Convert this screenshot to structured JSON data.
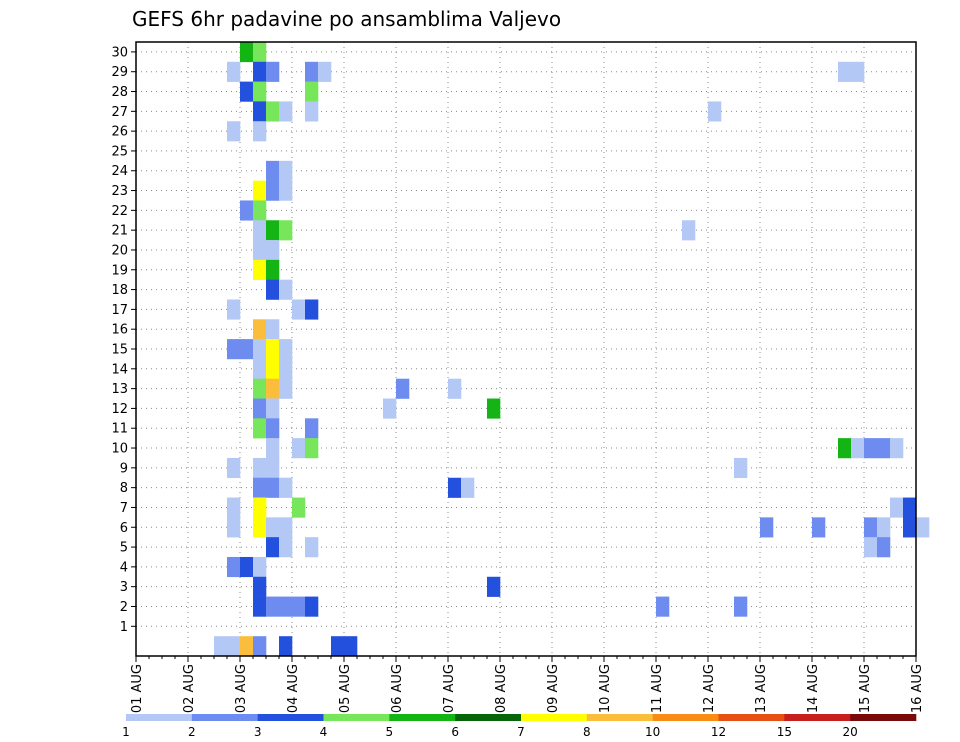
{
  "chart_data": {
    "type": "heatmap",
    "title": "GEFS 6hr padavine po ansamblima Valjevo",
    "xlabel": "",
    "ylabel": "",
    "x_ticks": [
      "01 AUG",
      "02 AUG",
      "03 AUG",
      "04 AUG",
      "05 AUG",
      "06 AUG",
      "07 AUG",
      "08 AUG",
      "09 AUG",
      "10 AUG",
      "11 AUG",
      "12 AUG",
      "13 AUG",
      "14 AUG",
      "15 AUG",
      "16 AUG"
    ],
    "x_step_hours": 6,
    "y_range": [
      0,
      30
    ],
    "y_ticks": [
      1,
      2,
      3,
      4,
      5,
      6,
      7,
      8,
      9,
      10,
      11,
      12,
      13,
      14,
      15,
      16,
      17,
      18,
      19,
      20,
      21,
      22,
      23,
      24,
      25,
      26,
      27,
      28,
      29,
      30
    ],
    "grid": true,
    "colorbar": {
      "colors": [
        "#b4c8f5",
        "#6e8cf0",
        "#2350dc",
        "#78e65a",
        "#14b414",
        "#086408",
        "#ffff00",
        "#fabe3c",
        "#f88c14",
        "#e65014",
        "#c81e1e",
        "#780a0a"
      ],
      "labels": [
        "1",
        "2",
        "3",
        "4",
        "5",
        "6",
        "7",
        "8",
        "10",
        "12",
        "15",
        "20"
      ]
    },
    "cells": [
      {
        "step": 8,
        "member": 30,
        "level": 5
      },
      {
        "step": 9,
        "member": 30,
        "level": 4
      },
      {
        "step": 7,
        "member": 29,
        "level": 1
      },
      {
        "step": 9,
        "member": 29,
        "level": 3
      },
      {
        "step": 10,
        "member": 29,
        "level": 2
      },
      {
        "step": 13,
        "member": 29,
        "level": 2
      },
      {
        "step": 14,
        "member": 29,
        "level": 1
      },
      {
        "step": 54,
        "member": 29,
        "level": 1
      },
      {
        "step": 55,
        "member": 29,
        "level": 1
      },
      {
        "step": 8,
        "member": 28,
        "level": 3
      },
      {
        "step": 9,
        "member": 28,
        "level": 4
      },
      {
        "step": 13,
        "member": 28,
        "level": 4
      },
      {
        "step": 9,
        "member": 27,
        "level": 3
      },
      {
        "step": 10,
        "member": 27,
        "level": 4
      },
      {
        "step": 11,
        "member": 27,
        "level": 1
      },
      {
        "step": 13,
        "member": 27,
        "level": 1
      },
      {
        "step": 44,
        "member": 27,
        "level": 1
      },
      {
        "step": 7,
        "member": 26,
        "level": 1
      },
      {
        "step": 9,
        "member": 26,
        "level": 1
      },
      {
        "step": 10,
        "member": 24,
        "level": 2
      },
      {
        "step": 11,
        "member": 24,
        "level": 1
      },
      {
        "step": 9,
        "member": 23,
        "level": 7
      },
      {
        "step": 10,
        "member": 23,
        "level": 2
      },
      {
        "step": 11,
        "member": 23,
        "level": 1
      },
      {
        "step": 8,
        "member": 22,
        "level": 2
      },
      {
        "step": 9,
        "member": 22,
        "level": 4
      },
      {
        "step": 9,
        "member": 21,
        "level": 1
      },
      {
        "step": 10,
        "member": 21,
        "level": 5
      },
      {
        "step": 11,
        "member": 21,
        "level": 4
      },
      {
        "step": 42,
        "member": 21,
        "level": 1
      },
      {
        "step": 9,
        "member": 20,
        "level": 1
      },
      {
        "step": 10,
        "member": 20,
        "level": 1
      },
      {
        "step": 9,
        "member": 19,
        "level": 7
      },
      {
        "step": 10,
        "member": 19,
        "level": 5
      },
      {
        "step": 10,
        "member": 18,
        "level": 3
      },
      {
        "step": 11,
        "member": 18,
        "level": 1
      },
      {
        "step": 7,
        "member": 17,
        "level": 1
      },
      {
        "step": 12,
        "member": 17,
        "level": 1
      },
      {
        "step": 13,
        "member": 17,
        "level": 3
      },
      {
        "step": 9,
        "member": 16,
        "level": 8
      },
      {
        "step": 10,
        "member": 16,
        "level": 1
      },
      {
        "step": 7,
        "member": 15,
        "level": 2
      },
      {
        "step": 8,
        "member": 15,
        "level": 2
      },
      {
        "step": 9,
        "member": 15,
        "level": 1
      },
      {
        "step": 10,
        "member": 15,
        "level": 7
      },
      {
        "step": 11,
        "member": 15,
        "level": 1
      },
      {
        "step": 9,
        "member": 14,
        "level": 1
      },
      {
        "step": 10,
        "member": 14,
        "level": 7
      },
      {
        "step": 11,
        "member": 14,
        "level": 1
      },
      {
        "step": 9,
        "member": 13,
        "level": 4
      },
      {
        "step": 10,
        "member": 13,
        "level": 8
      },
      {
        "step": 11,
        "member": 13,
        "level": 1
      },
      {
        "step": 20,
        "member": 13,
        "level": 2
      },
      {
        "step": 24,
        "member": 13,
        "level": 1
      },
      {
        "step": 9,
        "member": 12,
        "level": 2
      },
      {
        "step": 10,
        "member": 12,
        "level": 1
      },
      {
        "step": 19,
        "member": 12,
        "level": 1
      },
      {
        "step": 27,
        "member": 12,
        "level": 5
      },
      {
        "step": 9,
        "member": 11,
        "level": 4
      },
      {
        "step": 10,
        "member": 11,
        "level": 2
      },
      {
        "step": 13,
        "member": 11,
        "level": 2
      },
      {
        "step": 10,
        "member": 10,
        "level": 1
      },
      {
        "step": 12,
        "member": 10,
        "level": 1
      },
      {
        "step": 13,
        "member": 10,
        "level": 4
      },
      {
        "step": 54,
        "member": 10,
        "level": 5
      },
      {
        "step": 55,
        "member": 10,
        "level": 1
      },
      {
        "step": 56,
        "member": 10,
        "level": 2
      },
      {
        "step": 57,
        "member": 10,
        "level": 2
      },
      {
        "step": 58,
        "member": 10,
        "level": 1
      },
      {
        "step": 7,
        "member": 9,
        "level": 1
      },
      {
        "step": 9,
        "member": 9,
        "level": 1
      },
      {
        "step": 10,
        "member": 9,
        "level": 1
      },
      {
        "step": 46,
        "member": 9,
        "level": 1
      },
      {
        "step": 9,
        "member": 8,
        "level": 2
      },
      {
        "step": 10,
        "member": 8,
        "level": 2
      },
      {
        "step": 11,
        "member": 8,
        "level": 1
      },
      {
        "step": 24,
        "member": 8,
        "level": 3
      },
      {
        "step": 25,
        "member": 8,
        "level": 1
      },
      {
        "step": 7,
        "member": 7,
        "level": 1
      },
      {
        "step": 9,
        "member": 7,
        "level": 7
      },
      {
        "step": 12,
        "member": 7,
        "level": 4
      },
      {
        "step": 58,
        "member": 7,
        "level": 1
      },
      {
        "step": 59,
        "member": 7,
        "level": 3
      },
      {
        "step": 7,
        "member": 6,
        "level": 1
      },
      {
        "step": 9,
        "member": 6,
        "level": 7
      },
      {
        "step": 10,
        "member": 6,
        "level": 1
      },
      {
        "step": 11,
        "member": 6,
        "level": 1
      },
      {
        "step": 48,
        "member": 6,
        "level": 2
      },
      {
        "step": 52,
        "member": 6,
        "level": 2
      },
      {
        "step": 56,
        "member": 6,
        "level": 2
      },
      {
        "step": 57,
        "member": 6,
        "level": 1
      },
      {
        "step": 59,
        "member": 6,
        "level": 3
      },
      {
        "step": 60,
        "member": 6,
        "level": 1
      },
      {
        "step": 10,
        "member": 5,
        "level": 3
      },
      {
        "step": 11,
        "member": 5,
        "level": 1
      },
      {
        "step": 13,
        "member": 5,
        "level": 1
      },
      {
        "step": 56,
        "member": 5,
        "level": 1
      },
      {
        "step": 57,
        "member": 5,
        "level": 2
      },
      {
        "step": 7,
        "member": 4,
        "level": 2
      },
      {
        "step": 8,
        "member": 4,
        "level": 3
      },
      {
        "step": 9,
        "member": 4,
        "level": 1
      },
      {
        "step": 9,
        "member": 3,
        "level": 3
      },
      {
        "step": 27,
        "member": 3,
        "level": 3
      },
      {
        "step": 9,
        "member": 2,
        "level": 3
      },
      {
        "step": 10,
        "member": 2,
        "level": 2
      },
      {
        "step": 11,
        "member": 2,
        "level": 2
      },
      {
        "step": 12,
        "member": 2,
        "level": 2
      },
      {
        "step": 13,
        "member": 2,
        "level": 3
      },
      {
        "step": 40,
        "member": 2,
        "level": 2
      },
      {
        "step": 46,
        "member": 2,
        "level": 2
      },
      {
        "step": 6,
        "member": 0,
        "level": 1
      },
      {
        "step": 7,
        "member": 0,
        "level": 1
      },
      {
        "step": 8,
        "member": 0,
        "level": 8
      },
      {
        "step": 9,
        "member": 0,
        "level": 2
      },
      {
        "step": 11,
        "member": 0,
        "level": 3
      },
      {
        "step": 15,
        "member": 0,
        "level": 3
      },
      {
        "step": 16,
        "member": 0,
        "level": 3
      }
    ]
  }
}
